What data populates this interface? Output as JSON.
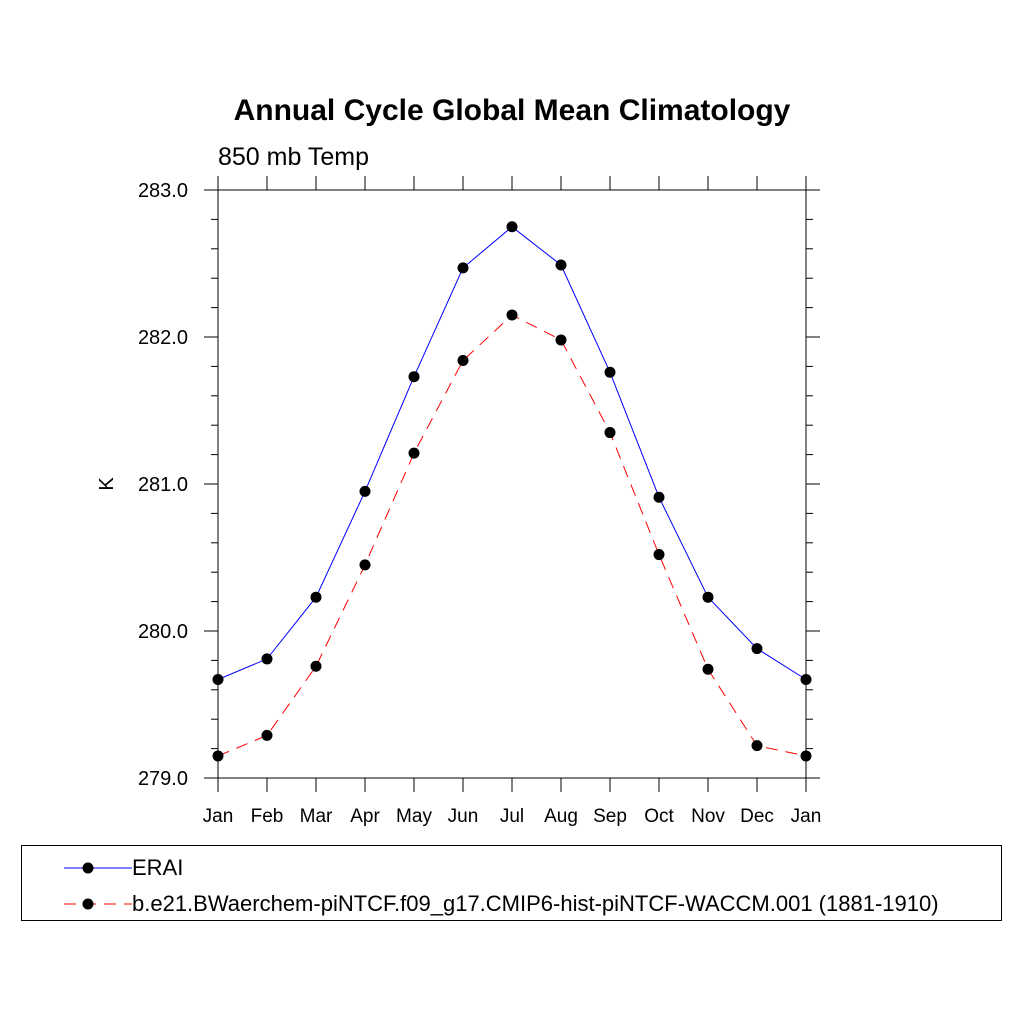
{
  "title": "Annual Cycle Global Mean Climatology",
  "subtitle": "850 mb Temp",
  "chart_data": {
    "type": "line",
    "title": "Annual Cycle Global Mean Climatology",
    "subtitle": "850 mb Temp",
    "xlabel": "",
    "ylabel": "K",
    "categories": [
      "Jan",
      "Feb",
      "Mar",
      "Apr",
      "May",
      "Jun",
      "Jul",
      "Aug",
      "Sep",
      "Oct",
      "Nov",
      "Dec",
      "Jan"
    ],
    "ylim": [
      279.0,
      283.0
    ],
    "yticks": [
      "279.0",
      "280.0",
      "281.0",
      "282.0",
      "283.0"
    ],
    "grid": false,
    "legend_position": "bottom",
    "series": [
      {
        "name": "ERAI",
        "color": "#0000ff",
        "dash": "solid",
        "values": [
          279.67,
          279.81,
          280.23,
          280.95,
          281.73,
          282.47,
          282.75,
          282.49,
          281.76,
          280.91,
          280.23,
          279.88,
          279.67
        ]
      },
      {
        "name": "b.e21.BWaerchem-piNTCF.f09_g17.CMIP6-hist-piNTCF-WACCM.001 (1881-1910)",
        "color": "#ff0000",
        "dash": "dashed",
        "values": [
          279.15,
          279.29,
          279.76,
          280.45,
          281.21,
          281.84,
          282.15,
          281.98,
          281.35,
          280.52,
          279.74,
          279.22,
          279.15
        ]
      }
    ]
  }
}
